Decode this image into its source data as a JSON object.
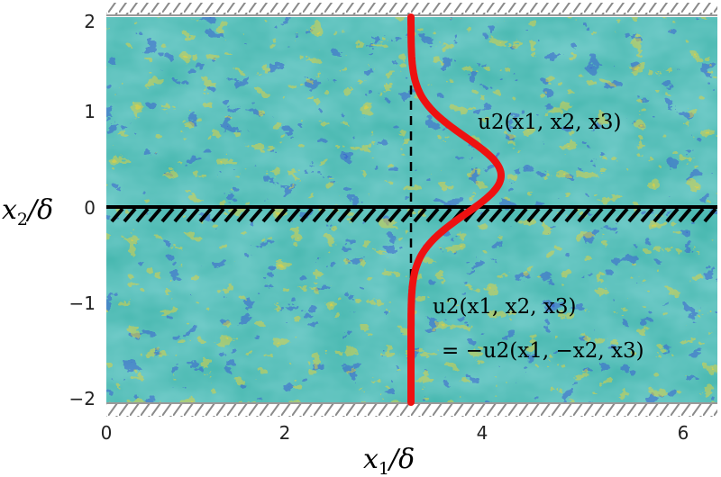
{
  "axes": {
    "x_title": {
      "main": "x",
      "sub": "1",
      "rest": "/δ"
    },
    "y_title": {
      "main": "x",
      "sub": "2",
      "rest": "/δ"
    },
    "x_ticks": [
      "0",
      "2",
      "4",
      "6"
    ],
    "y_ticks": [
      "2",
      "1",
      "0",
      "−1",
      "−2"
    ],
    "x_range": [
      0,
      6.3
    ],
    "y_range": [
      -2,
      2
    ]
  },
  "annotations": {
    "upper_label": "u2(x1, x2, x3)",
    "lower_label_line1": "u2(x1, x2, x3)",
    "lower_label_line2": "= −u2(x1, −x2, x3)"
  },
  "colors": {
    "field_base": "#48b8b0",
    "field_blue": "#3a5fd0",
    "field_yellow": "#e8d23a",
    "profile": "#ee1111",
    "centerline": "#000000",
    "hatch": "#888888"
  },
  "icons": {
    "wall": "hatched-wall-icon",
    "symmetry_plane": "hatched-symmetry-plane-icon"
  }
}
